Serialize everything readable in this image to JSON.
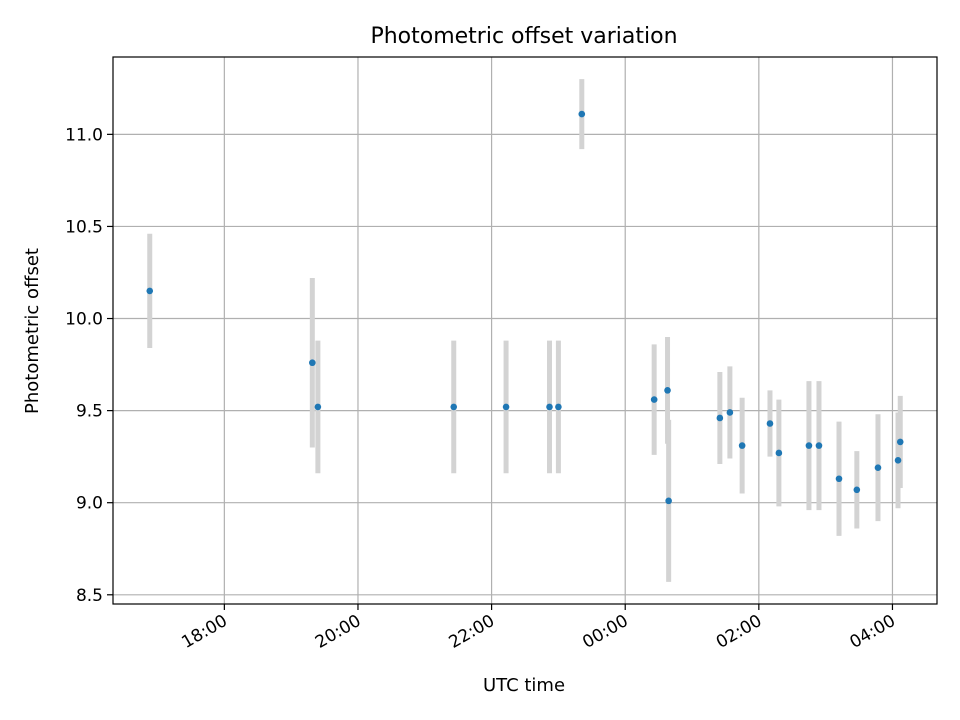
{
  "chart_data": {
    "type": "scatter",
    "title": "Photometric offset variation",
    "xlabel": "UTC time",
    "ylabel": "Photometric offset",
    "x_unit": "UTC time",
    "xlim": [
      "16:20",
      "04:40"
    ],
    "ylim": [
      8.45,
      11.42
    ],
    "x_ticks": [
      "18:00",
      "20:00",
      "22:00",
      "00:00",
      "02:00",
      "04:00"
    ],
    "y_ticks": [
      8.5,
      9.0,
      9.5,
      10.0,
      10.5,
      11.0
    ],
    "y_tick_labels": [
      "8.5",
      "9.0",
      "9.5",
      "10.0",
      "10.5",
      "11.0"
    ],
    "grid": true,
    "colors": {
      "point": "#1f77b4",
      "errorbar": "#d3d3d3",
      "grid": "#b0b0b0"
    },
    "points": [
      {
        "x": "16:53",
        "y": 10.15,
        "err": 0.31
      },
      {
        "x": "19:19",
        "y": 9.76,
        "err": 0.46
      },
      {
        "x": "19:24",
        "y": 9.52,
        "err": 0.36
      },
      {
        "x": "21:26",
        "y": 9.52,
        "err": 0.36
      },
      {
        "x": "22:13",
        "y": 9.52,
        "err": 0.36
      },
      {
        "x": "22:52",
        "y": 9.52,
        "err": 0.36
      },
      {
        "x": "23:00",
        "y": 9.52,
        "err": 0.36
      },
      {
        "x": "23:21",
        "y": 11.11,
        "err": 0.19
      },
      {
        "x": "00:26",
        "y": 9.56,
        "err": 0.3
      },
      {
        "x": "00:38",
        "y": 9.61,
        "err": 0.29
      },
      {
        "x": "00:39",
        "y": 9.01,
        "err": 0.44
      },
      {
        "x": "01:25",
        "y": 9.46,
        "err": 0.25
      },
      {
        "x": "01:34",
        "y": 9.49,
        "err": 0.25
      },
      {
        "x": "01:45",
        "y": 9.31,
        "err": 0.26
      },
      {
        "x": "02:10",
        "y": 9.43,
        "err": 0.18
      },
      {
        "x": "02:18",
        "y": 9.27,
        "err": 0.29
      },
      {
        "x": "02:45",
        "y": 9.31,
        "err": 0.35
      },
      {
        "x": "02:54",
        "y": 9.31,
        "err": 0.35
      },
      {
        "x": "03:12",
        "y": 9.13,
        "err": 0.31
      },
      {
        "x": "03:28",
        "y": 9.07,
        "err": 0.21
      },
      {
        "x": "03:47",
        "y": 9.19,
        "err": 0.29
      },
      {
        "x": "04:05",
        "y": 9.23,
        "err": 0.26
      },
      {
        "x": "04:07",
        "y": 9.33,
        "err": 0.25
      }
    ]
  }
}
